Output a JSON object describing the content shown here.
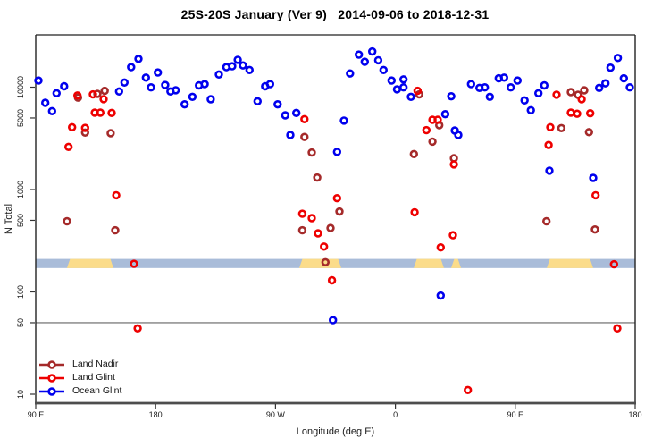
{
  "title": "25S-20S January (Ver 9)   2014-09-06 to 2018-12-31",
  "chart_data": {
    "type": "scatter",
    "title": "25S-20S January (Ver 9)   2014-09-06 to 2018-12-31",
    "xlabel": "Longitude (deg E)",
    "ylabel": "N Total",
    "x_axis": {
      "span_deg": 450,
      "ticks_deg": [
        0,
        90,
        180,
        270,
        360,
        450
      ],
      "tick_labels": [
        "90 E",
        "180",
        "90 W",
        "0",
        "90 E",
        "180"
      ]
    },
    "y_axis": {
      "scale": "log10",
      "ticks": [
        10,
        50,
        100,
        500,
        1000,
        5000,
        10000
      ],
      "range": [
        8.5,
        23500
      ]
    },
    "reference_line_y": 50,
    "land_ocean_band": {
      "value_range": [
        171,
        210
      ],
      "ocean_color": "#A9BCD9",
      "land_color": "#FBDC8A",
      "land_segments_deg": [
        [
          24.1,
          57.7
        ],
        [
          198.5,
          228.7
        ],
        [
          284.4,
          305.8
        ],
        [
          312.5,
          318.6
        ],
        [
          384.3,
          417.8
        ]
      ]
    },
    "series": [
      {
        "name": "Land Nadir",
        "color": "#A52A2A",
        "points": [
          [
            31.7,
            7900
          ],
          [
            46.3,
            8600
          ],
          [
            51.8,
            9200
          ],
          [
            37.1,
            3600
          ],
          [
            56.3,
            3550
          ],
          [
            23.5,
            490
          ],
          [
            59.7,
            400
          ],
          [
            201.7,
            3260
          ],
          [
            207.2,
            2300
          ],
          [
            211.3,
            1310
          ],
          [
            228.0,
            610
          ],
          [
            200.1,
            400
          ],
          [
            221.3,
            420
          ],
          [
            217.5,
            195
          ],
          [
            287.9,
            8500
          ],
          [
            302.9,
            4250
          ],
          [
            297.8,
            2940
          ],
          [
            283.9,
            2220
          ],
          [
            313.9,
            2020
          ],
          [
            383.4,
            490
          ],
          [
            394.6,
            3980
          ],
          [
            401.7,
            8950
          ],
          [
            407.1,
            8430
          ],
          [
            411.8,
            9320
          ],
          [
            415.3,
            3640
          ],
          [
            419.8,
            407
          ]
        ]
      },
      {
        "name": "Land Glint",
        "color": "#EE0000",
        "points": [
          [
            31.3,
            8300
          ],
          [
            42.9,
            8500
          ],
          [
            51.0,
            7640
          ],
          [
            44.3,
            5640
          ],
          [
            48.5,
            5640
          ],
          [
            57.0,
            5600
          ],
          [
            27.3,
            4060
          ],
          [
            37.1,
            4000
          ],
          [
            24.6,
            2610
          ],
          [
            60.4,
            880
          ],
          [
            73.8,
            188
          ],
          [
            76.5,
            44
          ],
          [
            201.7,
            4870
          ],
          [
            226.2,
            822
          ],
          [
            200.1,
            580
          ],
          [
            207.2,
            525
          ],
          [
            211.9,
            373
          ],
          [
            216.4,
            277
          ],
          [
            222.4,
            130
          ],
          [
            286.6,
            9200
          ],
          [
            297.8,
            4800
          ],
          [
            301.8,
            4800
          ],
          [
            293.3,
            3800
          ],
          [
            284.4,
            600
          ],
          [
            304.0,
            272
          ],
          [
            313.2,
            358
          ],
          [
            313.9,
            1760
          ],
          [
            324.4,
            11
          ],
          [
            386.3,
            4060
          ],
          [
            385.0,
            2720
          ],
          [
            391.0,
            8440
          ],
          [
            409.8,
            7620
          ],
          [
            401.7,
            5640
          ],
          [
            406.4,
            5500
          ],
          [
            416.3,
            5560
          ],
          [
            420.3,
            880
          ],
          [
            434.1,
            186
          ],
          [
            436.6,
            44
          ]
        ]
      },
      {
        "name": "Ocean Glint",
        "color": "#0000EE",
        "points": [
          [
            2.0,
            11600
          ],
          [
            21.3,
            10200
          ],
          [
            15.6,
            8720
          ],
          [
            7.2,
            7030
          ],
          [
            12.3,
            5830
          ],
          [
            71.6,
            15700
          ],
          [
            66.6,
            11100
          ],
          [
            62.6,
            9080
          ],
          [
            77.1,
            18900
          ],
          [
            82.7,
            12400
          ],
          [
            91.7,
            13900
          ],
          [
            86.5,
            9960
          ],
          [
            97.2,
            10500
          ],
          [
            101.1,
            9080
          ],
          [
            105.1,
            9330
          ],
          [
            111.8,
            6800
          ],
          [
            117.6,
            8050
          ],
          [
            122.5,
            10400
          ],
          [
            126.8,
            10700
          ],
          [
            131.4,
            7620
          ],
          [
            137.5,
            13300
          ],
          [
            143.1,
            15700
          ],
          [
            147.5,
            16000
          ],
          [
            151.6,
            18500
          ],
          [
            155.6,
            16300
          ],
          [
            160.5,
            14700
          ],
          [
            166.5,
            7280
          ],
          [
            172.2,
            10200
          ],
          [
            175.9,
            10700
          ],
          [
            181.6,
            6800
          ],
          [
            187.3,
            5310
          ],
          [
            195.6,
            5600
          ],
          [
            191.1,
            3410
          ],
          [
            226.2,
            2330
          ],
          [
            231.4,
            4710
          ],
          [
            235.9,
            13600
          ],
          [
            242.6,
            20800
          ],
          [
            247.0,
            17700
          ],
          [
            252.6,
            22300
          ],
          [
            257.1,
            18300
          ],
          [
            261.1,
            14700
          ],
          [
            267.1,
            11600
          ],
          [
            276.1,
            11900
          ],
          [
            271.2,
            9520
          ],
          [
            276.1,
            9960
          ],
          [
            281.7,
            8050
          ],
          [
            311.9,
            8140
          ],
          [
            307.4,
            5450
          ],
          [
            314.6,
            3770
          ],
          [
            317.2,
            3410
          ],
          [
            304.0,
            92
          ],
          [
            223.1,
            53
          ],
          [
            326.8,
            10700
          ],
          [
            333.1,
            9850
          ],
          [
            337.1,
            9960
          ],
          [
            340.9,
            8050
          ],
          [
            347.6,
            12200
          ],
          [
            351.6,
            12400
          ],
          [
            356.6,
            9960
          ],
          [
            361.7,
            11600
          ],
          [
            367.0,
            7420
          ],
          [
            371.7,
            5950
          ],
          [
            377.4,
            8720
          ],
          [
            381.8,
            10400
          ],
          [
            385.6,
            1530
          ],
          [
            418.5,
            1300
          ],
          [
            423.0,
            9850
          ],
          [
            427.7,
            10900
          ],
          [
            431.4,
            15500
          ],
          [
            437.0,
            19300
          ],
          [
            441.5,
            12200
          ],
          [
            446.0,
            9960
          ]
        ]
      }
    ]
  },
  "legend": {
    "items": [
      {
        "label": "Land Nadir",
        "color": "#A52A2A"
      },
      {
        "label": "Land Glint",
        "color": "#EE0000"
      },
      {
        "label": "Ocean Glint",
        "color": "#0000EE"
      }
    ]
  },
  "style": {
    "box_color": "#222222",
    "bottom_axis_color": "#4d4d4d",
    "tick_color": "#333333",
    "ref_line_color": "#808080",
    "text_color": "#1a1a1a"
  }
}
